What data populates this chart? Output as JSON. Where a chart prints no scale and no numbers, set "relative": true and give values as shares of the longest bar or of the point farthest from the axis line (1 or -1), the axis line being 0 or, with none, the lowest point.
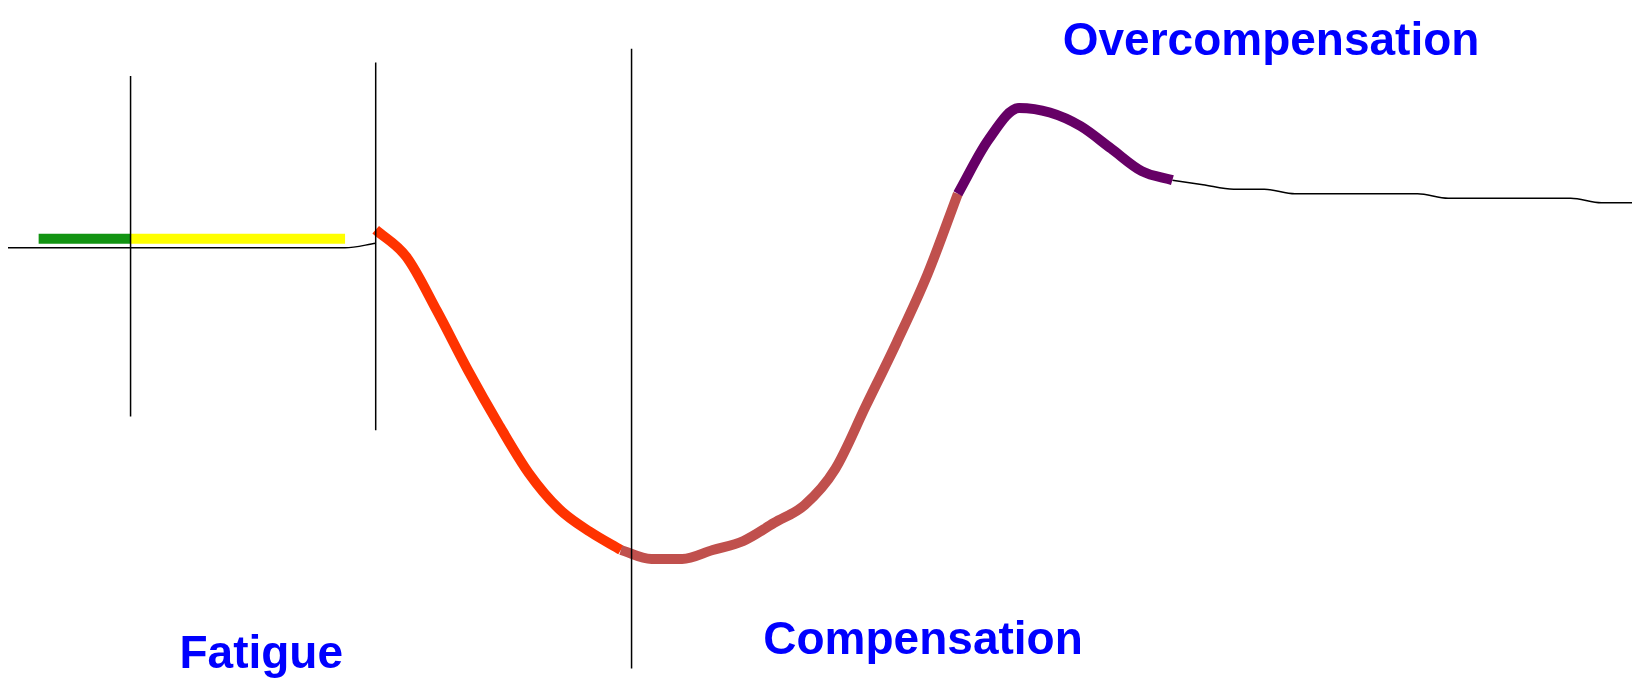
{
  "chart_data": {
    "type": "line",
    "relative": true,
    "legend": false,
    "grid": false,
    "tick_labels": false,
    "marker": "none",
    "line_style": "solid",
    "categories": [
      null,
      null,
      null,
      null,
      null,
      null,
      null,
      null,
      null,
      null,
      null,
      null,
      null,
      null,
      null,
      null,
      null,
      null,
      null,
      null,
      null,
      null,
      null,
      null,
      null,
      null,
      null,
      null,
      null,
      null,
      null,
      null,
      null,
      null,
      null,
      null,
      null,
      null,
      null,
      null,
      null,
      null,
      null,
      null,
      null,
      null,
      null,
      null,
      null,
      null,
      null,
      null,
      null,
      null
    ],
    "series": [
      {
        "color": "#000000",
        "values": [
          0.69,
          0.69,
          0.69,
          0.69,
          0.69,
          0.69,
          0.69,
          0.69,
          0.69,
          0.69,
          0.69,
          0.69,
          0.7,
          null,
          null,
          null,
          null,
          null,
          null,
          null,
          null,
          null,
          null,
          null,
          null,
          null,
          null,
          null,
          null,
          null,
          null,
          null,
          null,
          null,
          null,
          null,
          null,
          null,
          0.84,
          0.83,
          0.82,
          0.82,
          0.81,
          0.81,
          0.81,
          0.81,
          0.81,
          0.8,
          0.8,
          0.8,
          0.8,
          0.8,
          0.79,
          0.79
        ]
      },
      {
        "color": "#129412",
        "values": [
          null,
          0.71,
          0.71,
          0.71,
          0.71,
          null,
          null,
          null,
          null,
          null,
          null,
          null,
          null,
          null,
          null,
          null,
          null,
          null,
          null,
          null,
          null,
          null,
          null,
          null,
          null,
          null,
          null,
          null,
          null,
          null,
          null,
          null,
          null,
          null,
          null,
          null,
          null,
          null,
          null,
          null,
          null,
          null,
          null,
          null,
          null,
          null,
          null,
          null,
          null,
          null,
          null,
          null,
          null,
          null
        ]
      },
      {
        "color": "#ffff00",
        "values": [
          null,
          null,
          null,
          null,
          0.71,
          0.71,
          0.71,
          0.71,
          0.71,
          0.71,
          0.71,
          0.71,
          null,
          null,
          null,
          null,
          null,
          null,
          null,
          null,
          null,
          null,
          null,
          null,
          null,
          null,
          null,
          null,
          null,
          null,
          null,
          null,
          null,
          null,
          null,
          null,
          null,
          null,
          null,
          null,
          null,
          null,
          null,
          null,
          null,
          null,
          null,
          null,
          null,
          null,
          null,
          null,
          null,
          null
        ]
      },
      {
        "color": "#ff3300",
        "values": [
          null,
          null,
          null,
          null,
          null,
          null,
          null,
          null,
          null,
          null,
          null,
          null,
          0.73,
          0.67,
          0.55,
          0.42,
          0.3,
          0.19,
          0.11,
          0.06,
          0.02,
          null,
          null,
          null,
          null,
          null,
          null,
          null,
          null,
          null,
          null,
          null,
          null,
          null,
          null,
          null,
          null,
          null,
          null,
          null,
          null,
          null,
          null,
          null,
          null,
          null,
          null,
          null,
          null,
          null,
          null,
          null,
          null,
          null
        ]
      },
      {
        "color": "#c0504d",
        "values": [
          null,
          null,
          null,
          null,
          null,
          null,
          null,
          null,
          null,
          null,
          null,
          null,
          null,
          null,
          null,
          null,
          null,
          null,
          null,
          null,
          0.02,
          0.0,
          0.0,
          0.02,
          0.04,
          0.08,
          0.12,
          0.2,
          0.34,
          0.48,
          0.63,
          0.81,
          null,
          null,
          null,
          null,
          null,
          null,
          null,
          null,
          null,
          null,
          null,
          null,
          null,
          null,
          null,
          null,
          null,
          null,
          null,
          null,
          null,
          null
        ]
      },
      {
        "color": "#660066",
        "values": [
          null,
          null,
          null,
          null,
          null,
          null,
          null,
          null,
          null,
          null,
          null,
          null,
          null,
          null,
          null,
          null,
          null,
          null,
          null,
          null,
          null,
          null,
          null,
          null,
          null,
          null,
          null,
          null,
          null,
          null,
          null,
          0.81,
          0.93,
          1.0,
          0.99,
          0.96,
          0.91,
          0.86,
          0.84,
          null,
          null,
          null,
          null,
          null,
          null,
          null,
          null,
          null,
          null,
          null,
          null,
          null,
          null,
          null
        ]
      }
    ],
    "annotations": [
      "Overcompensation",
      "Compensation",
      "Fatigue"
    ]
  }
}
